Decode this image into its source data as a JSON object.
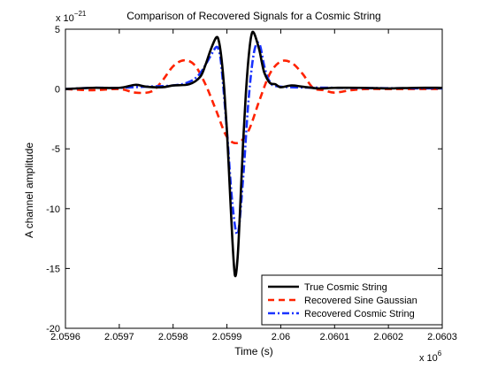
{
  "chart_data": {
    "type": "line",
    "title": "Comparison of Recovered Signals for a Cosmic String",
    "xlabel": "Time (s)",
    "ylabel": "A channel amplitude",
    "x_multiplier_label": "x 10",
    "x_multiplier_exp": "6",
    "y_multiplier_label": "x 10",
    "y_multiplier_exp": "−21",
    "xlim": [
      2.0596,
      2.0603
    ],
    "ylim": [
      -20,
      5
    ],
    "xticks": [
      2.0596,
      2.0597,
      2.0598,
      2.0599,
      2.06,
      2.0601,
      2.0602,
      2.0603
    ],
    "xtick_labels": [
      "2.0596",
      "2.0597",
      "2.0598",
      "2.0599",
      "2.06",
      "2.0601",
      "2.0602",
      "2.0603"
    ],
    "yticks": [
      5,
      0,
      -5,
      -10,
      -15,
      -20
    ],
    "ytick_labels": [
      "5",
      "0",
      "-5",
      "-10",
      "-15",
      "-20"
    ],
    "grid": false,
    "legend_position": "bottom-right",
    "series": [
      {
        "name": "True Cosmic String",
        "color": "#000000",
        "style": "solid",
        "x": [
          2.0596,
          2.05965,
          2.0597,
          2.05973,
          2.05975,
          2.05978,
          2.0598,
          2.05983,
          2.05985,
          2.05986,
          2.05987,
          2.05988,
          2.059885,
          2.05989,
          2.059895,
          2.0599,
          2.059905,
          2.05991,
          2.059915,
          2.05992,
          2.059925,
          2.05993,
          2.059935,
          2.05994,
          2.059945,
          2.05995,
          2.05996,
          2.059965,
          2.05997,
          2.05998,
          2.05999,
          2.06,
          2.06002,
          2.06004,
          2.06007,
          2.0601,
          2.06015,
          2.0602,
          2.06025,
          2.0603
        ],
        "y": [
          0,
          0.1,
          0.1,
          0.35,
          0.2,
          0.15,
          0.3,
          0.4,
          1.0,
          2.0,
          3.3,
          4.3,
          4.0,
          2.5,
          0.0,
          -3.5,
          -8.0,
          -12.5,
          -15.6,
          -14.0,
          -9.5,
          -4.5,
          -0.5,
          2.5,
          4.4,
          4.7,
          3.3,
          2.2,
          1.3,
          0.5,
          0.4,
          0.15,
          0.3,
          0.2,
          0.05,
          0.1,
          0.1,
          0.05,
          0.1,
          0.1
        ]
      },
      {
        "name": "Recovered Sine Gaussian",
        "color": "#ff2200",
        "style": "dashed",
        "x": [
          2.0596,
          2.05965,
          2.0597,
          2.05973,
          2.05976,
          2.05978,
          2.0598,
          2.05982,
          2.05984,
          2.05986,
          2.05988,
          2.0599,
          2.05992,
          2.05994,
          2.05996,
          2.05998,
          2.06,
          2.06002,
          2.06004,
          2.06006,
          2.06008,
          2.0601,
          2.06013,
          2.06016,
          2.0602,
          2.0603
        ],
        "y": [
          0,
          -0.1,
          0,
          -0.3,
          -0.2,
          0.7,
          1.9,
          2.4,
          2.0,
          0.4,
          -1.8,
          -4.0,
          -4.5,
          -3.5,
          -1.0,
          1.3,
          2.3,
          2.2,
          1.3,
          0.1,
          -0.1,
          -0.3,
          -0.1,
          0,
          0,
          0
        ]
      },
      {
        "name": "Recovered Cosmic String",
        "color": "#1a33ff",
        "style": "dashdot",
        "x": [
          2.0596,
          2.05965,
          2.0597,
          2.05975,
          2.0598,
          2.05983,
          2.05985,
          2.05987,
          2.05988,
          2.059885,
          2.05989,
          2.0599,
          2.05991,
          2.05992,
          2.05993,
          2.05994,
          2.05995,
          2.05996,
          2.05997,
          2.05998,
          2.06,
          2.0601,
          2.0603
        ],
        "y": [
          0,
          0.1,
          0.1,
          0.2,
          0.3,
          0.6,
          1.3,
          2.8,
          3.5,
          3.2,
          1.8,
          -3.5,
          -9.5,
          -12.1,
          -7.5,
          -1.0,
          3.0,
          3.8,
          1.8,
          0.6,
          0.2,
          0.1,
          0.05
        ]
      }
    ]
  }
}
